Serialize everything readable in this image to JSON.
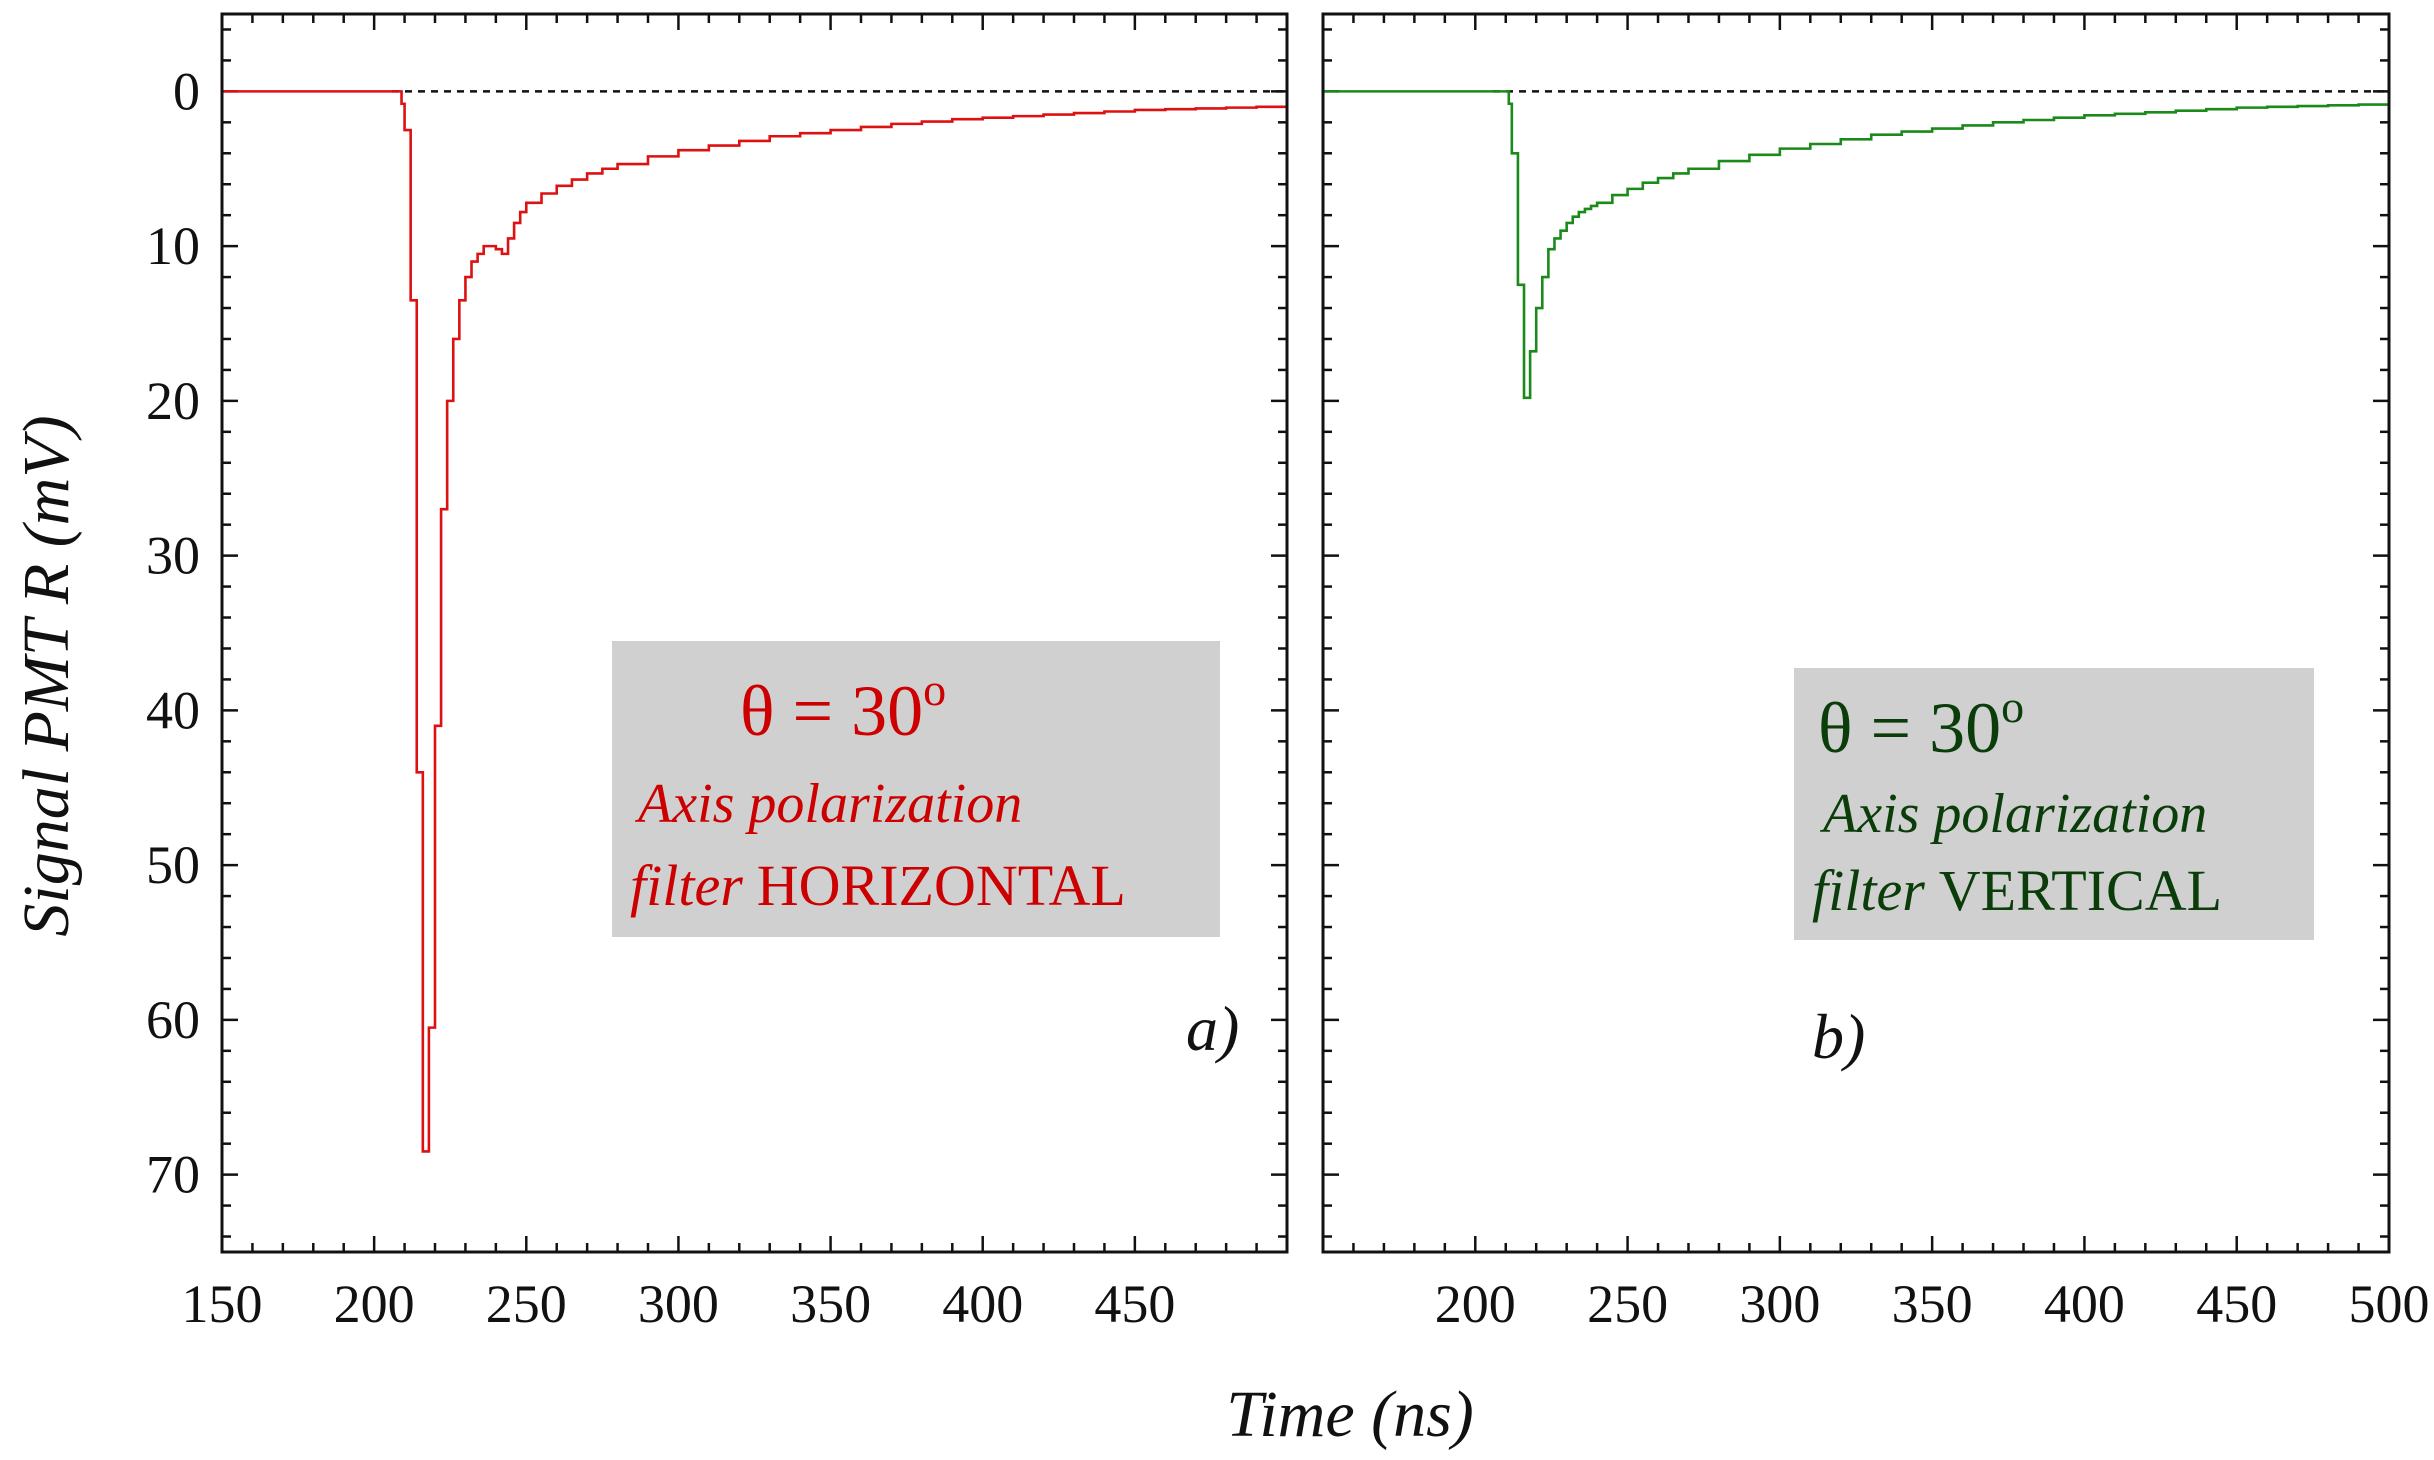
{
  "chart_data": [
    {
      "type": "line",
      "panel_label": "a)",
      "xlim": [
        150,
        500
      ],
      "ylim": [
        75,
        -5
      ],
      "y_inverted": true,
      "x_ticks": [
        150,
        200,
        250,
        300,
        350,
        400,
        450
      ],
      "y_ticks": [
        0,
        10,
        20,
        30,
        40,
        50,
        60,
        70
      ],
      "reference_line": {
        "y": 0,
        "style": "dashed"
      },
      "annotation": {
        "theta": "θ = 30",
        "theta_sup": "o",
        "line1": "Axis polarization",
        "line2_italic": "filter",
        "line2_plain": "HORIZONTAL",
        "color": "#cc0000",
        "box_color": "#d0d0d0",
        "position": "center-right"
      },
      "series": [
        {
          "color": "#dd1111",
          "step": true,
          "x": [
            150,
            208,
            209,
            210,
            212,
            214,
            216,
            218,
            220,
            222,
            224,
            226,
            228,
            230,
            232,
            234,
            236,
            238,
            240,
            242,
            244,
            246,
            248,
            250,
            255,
            260,
            265,
            270,
            275,
            280,
            290,
            300,
            310,
            320,
            330,
            340,
            350,
            360,
            370,
            380,
            390,
            400,
            410,
            420,
            430,
            440,
            450,
            460,
            470,
            480,
            490,
            500
          ],
          "y": [
            0,
            0,
            0.8,
            2.5,
            13.5,
            44,
            68.5,
            60.5,
            41,
            27,
            20,
            16,
            13.5,
            12,
            11,
            10.5,
            10,
            10,
            10.2,
            10.5,
            9.5,
            8.5,
            7.8,
            7.2,
            6.6,
            6.1,
            5.7,
            5.3,
            5.0,
            4.7,
            4.2,
            3.8,
            3.5,
            3.2,
            2.9,
            2.7,
            2.5,
            2.3,
            2.1,
            1.95,
            1.8,
            1.7,
            1.6,
            1.5,
            1.4,
            1.3,
            1.2,
            1.15,
            1.1,
            1.05,
            1.0,
            0.95
          ]
        }
      ]
    },
    {
      "type": "line",
      "panel_label": "b)",
      "xlim": [
        150,
        500
      ],
      "ylim": [
        75,
        -5
      ],
      "y_inverted": true,
      "x_ticks": [
        200,
        250,
        300,
        350,
        400,
        450,
        500
      ],
      "y_ticks": [
        0,
        10,
        20,
        30,
        40,
        50,
        60,
        70
      ],
      "reference_line": {
        "y": 0,
        "style": "dashed"
      },
      "annotation": {
        "theta": "θ = 30",
        "theta_sup": "o",
        "line1": "Axis polarization",
        "line2_italic": "filter",
        "line2_plain": "VERTICAL",
        "color": "#0a3d0a",
        "box_color": "#d0d0d0",
        "position": "center-right"
      },
      "series": [
        {
          "color": "#1a8a1a",
          "step": true,
          "x": [
            150,
            210,
            211,
            212,
            214,
            216,
            218,
            220,
            222,
            224,
            226,
            228,
            230,
            232,
            234,
            236,
            238,
            240,
            245,
            250,
            255,
            260,
            265,
            270,
            280,
            290,
            300,
            310,
            320,
            330,
            340,
            350,
            360,
            370,
            380,
            390,
            400,
            410,
            420,
            430,
            440,
            450,
            460,
            470,
            480,
            490,
            500
          ],
          "y": [
            0,
            0,
            0.8,
            4,
            12.5,
            19.8,
            16.8,
            14,
            12,
            10.2,
            9.5,
            9.0,
            8.5,
            8.1,
            7.8,
            7.6,
            7.4,
            7.2,
            6.7,
            6.3,
            5.9,
            5.6,
            5.3,
            5.0,
            4.5,
            4.1,
            3.7,
            3.4,
            3.1,
            2.8,
            2.6,
            2.4,
            2.2,
            2.0,
            1.85,
            1.7,
            1.55,
            1.45,
            1.35,
            1.25,
            1.15,
            1.05,
            1.0,
            0.95,
            0.9,
            0.85,
            0.8
          ]
        }
      ]
    }
  ],
  "axes_text": {
    "ylabel": "Signal PMT R (mV)",
    "xlabel": "Time (ns)"
  }
}
